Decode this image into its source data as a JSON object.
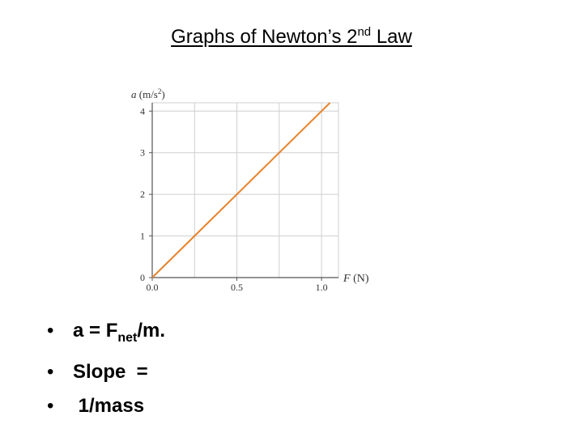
{
  "title": {
    "text": "Graphs of Newton’s 2",
    "sup": "nd",
    "tail": " Law"
  },
  "chart_data": {
    "type": "line",
    "xlabel_italic": "F",
    "xlabel_unit": "(N)",
    "ylabel_italic": "a",
    "ylabel_unit_base": "(m/s",
    "ylabel_unit_sup": "2",
    "ylabel_unit_close": ")",
    "xlim": [
      0,
      1.1
    ],
    "ylim": [
      0,
      4.2
    ],
    "x_ticks": [
      0,
      0.5,
      1.0
    ],
    "x_tick_labels": [
      "0.0",
      "0.5",
      "1.0"
    ],
    "y_ticks": [
      0,
      1,
      2,
      3,
      4
    ],
    "y_tick_labels": [
      "0",
      "1",
      "2",
      "3",
      "4"
    ],
    "grid": true,
    "line_color": "#e8822a",
    "series": [
      {
        "x": [
          0,
          1.05
        ],
        "y": [
          0,
          4.2
        ]
      }
    ]
  },
  "bullets": {
    "b1": {
      "pre": "a = F",
      "sub": "net",
      "post": "/m."
    },
    "b2": "Slope  =",
    "b3": " 1/mass"
  }
}
